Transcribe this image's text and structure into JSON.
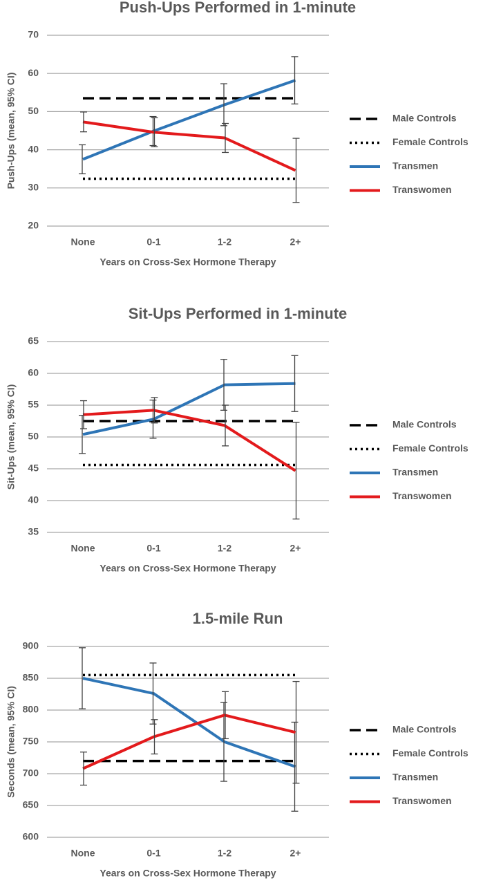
{
  "chart_data": [
    {
      "type": "line",
      "title": "Push-Ups Performed in 1-minute",
      "x_label": "Years on Cross-Sex Hormone Therapy",
      "y_label": "Push-Ups (mean, 95% CI)",
      "categories": [
        "None",
        "0-1",
        "1-2",
        "2+"
      ],
      "ylim": [
        20,
        70
      ],
      "yticks": [
        20,
        30,
        40,
        50,
        60,
        70
      ],
      "grid": true,
      "legend": "right",
      "series": [
        {
          "name": "Male Controls",
          "color": "#000000",
          "dash": "dashed",
          "values": [
            53.5,
            53.5,
            53.5,
            53.5
          ]
        },
        {
          "name": "Female Controls",
          "color": "#000000",
          "dash": "dotted",
          "values": [
            32.4,
            32.4,
            32.4,
            32.4
          ]
        },
        {
          "name": "Transmen",
          "color": "#2e75b6",
          "dash": "solid",
          "values": [
            37.5,
            44.9,
            51.8,
            58.2
          ],
          "errors": [
            3.8,
            3.8,
            5.5,
            6.2
          ]
        },
        {
          "name": "Transwomen",
          "color": "#e31a1c",
          "dash": "solid",
          "values": [
            47.3,
            44.6,
            43.1,
            34.6
          ],
          "errors": [
            2.6,
            3.8,
            3.8,
            8.4
          ]
        }
      ]
    },
    {
      "type": "line",
      "title": "Sit-Ups Performed in 1-minute",
      "x_label": "Years on Cross-Sex Hormone Therapy",
      "y_label": "Sit-Ups (mean, 95% CI)",
      "categories": [
        "None",
        "0-1",
        "1-2",
        "2+"
      ],
      "ylim": [
        35,
        65
      ],
      "yticks": [
        35,
        40,
        45,
        50,
        55,
        60,
        65
      ],
      "grid": true,
      "legend": "right",
      "series": [
        {
          "name": "Male Controls",
          "color": "#000000",
          "dash": "dashed",
          "values": [
            52.5,
            52.5,
            52.5,
            52.5
          ]
        },
        {
          "name": "Female Controls",
          "color": "#000000",
          "dash": "dotted",
          "values": [
            45.6,
            45.6,
            45.6,
            45.6
          ]
        },
        {
          "name": "Transmen",
          "color": "#2e75b6",
          "dash": "solid",
          "values": [
            50.4,
            52.8,
            58.2,
            58.4
          ],
          "errors": [
            3.0,
            3.0,
            4.0,
            4.4
          ]
        },
        {
          "name": "Transwomen",
          "color": "#e31a1c",
          "dash": "solid",
          "values": [
            53.5,
            54.2,
            51.8,
            44.7
          ],
          "errors": [
            2.2,
            2.0,
            3.2,
            7.6
          ]
        }
      ]
    },
    {
      "type": "line",
      "title": "1.5-mile Run",
      "x_label": "Years on Cross-Sex Hormone Therapy",
      "y_label": "Seconds (mean, 95% CI)",
      "categories": [
        "None",
        "0-1",
        "1-2",
        "2+"
      ],
      "ylim": [
        600,
        900
      ],
      "yticks": [
        600,
        650,
        700,
        750,
        800,
        850,
        900
      ],
      "grid": true,
      "legend": "right",
      "series": [
        {
          "name": "Male Controls",
          "color": "#000000",
          "dash": "dashed",
          "values": [
            720,
            720,
            720,
            720
          ]
        },
        {
          "name": "Female Controls",
          "color": "#000000",
          "dash": "dotted",
          "values": [
            855,
            855,
            855,
            855
          ]
        },
        {
          "name": "Transmen",
          "color": "#2e75b6",
          "dash": "solid",
          "values": [
            850,
            826,
            750,
            711
          ],
          "errors": [
            48,
            48,
            62,
            70
          ]
        },
        {
          "name": "Transwomen",
          "color": "#e31a1c",
          "dash": "solid",
          "values": [
            708,
            758,
            792,
            765
          ],
          "errors": [
            26,
            27,
            37,
            80
          ]
        }
      ]
    }
  ]
}
